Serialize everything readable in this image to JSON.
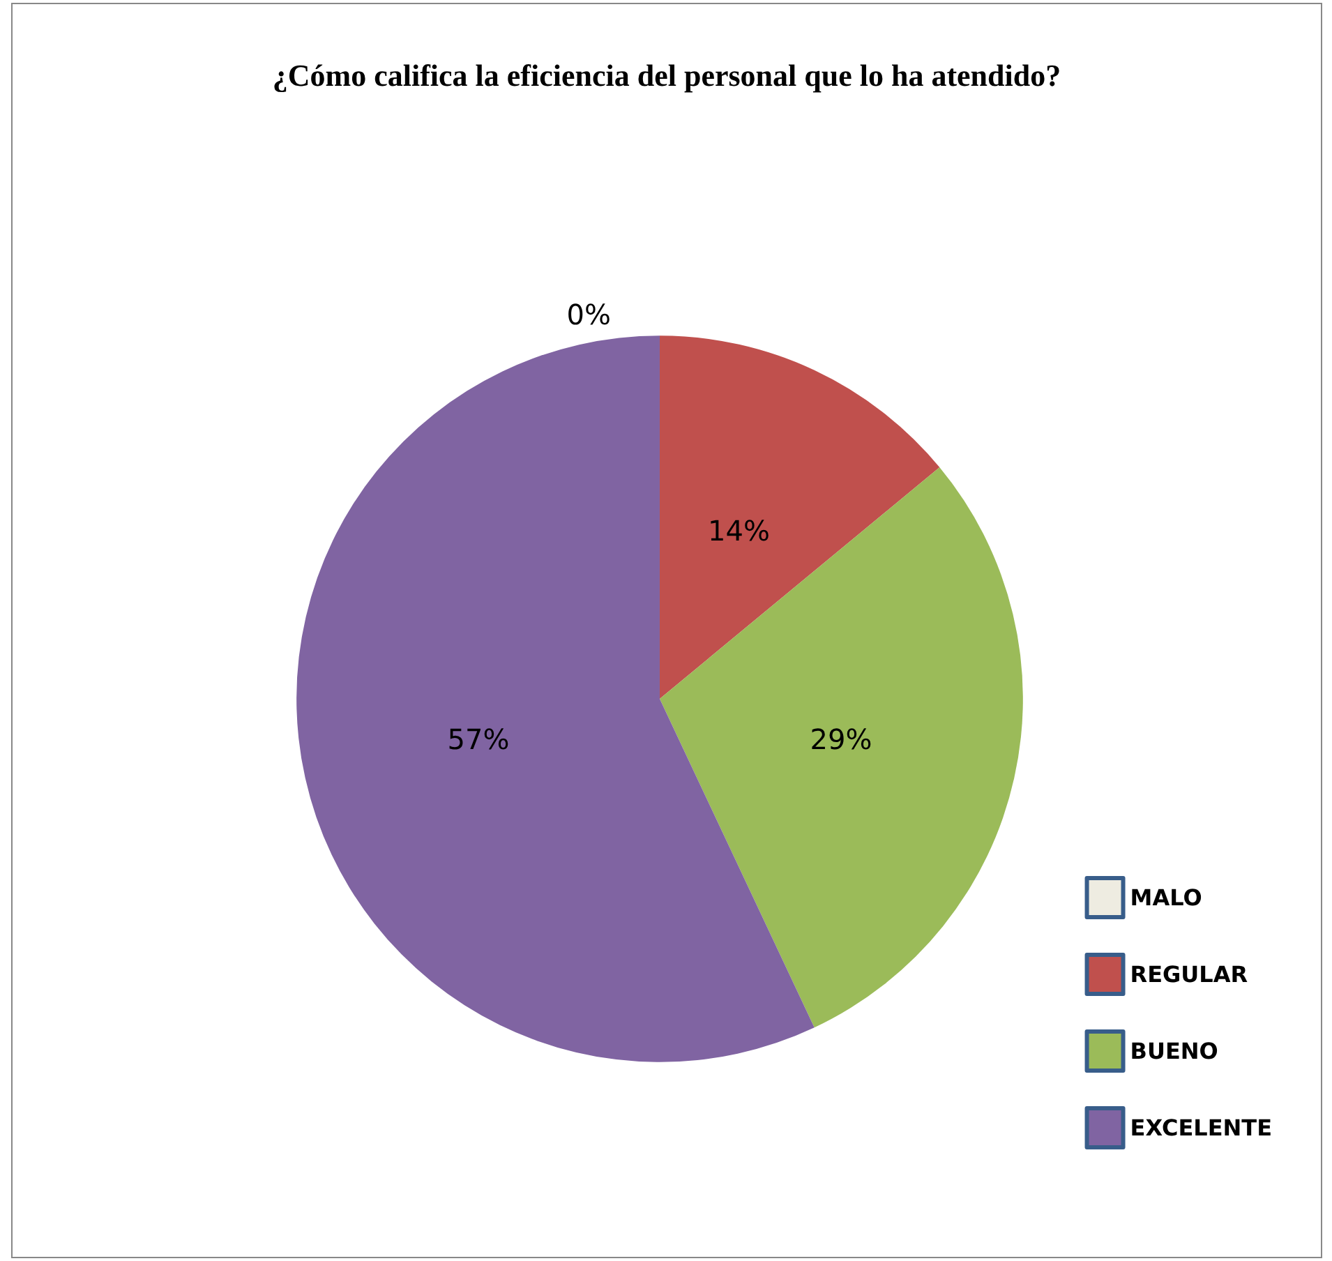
{
  "chart_data": {
    "type": "pie",
    "title": "¿Cómo califica la eficiencia del personal que lo ha atendido?",
    "categories": [
      "MALO",
      "REGULAR",
      "BUENO",
      "EXCELENTE"
    ],
    "values": [
      0,
      14,
      29,
      57
    ],
    "colors": [
      "#eeece1",
      "#c0504d",
      "#9bbb59",
      "#8064a2"
    ],
    "value_labels": [
      "0%",
      "14%",
      "29%",
      "57%"
    ],
    "legend": "right"
  }
}
